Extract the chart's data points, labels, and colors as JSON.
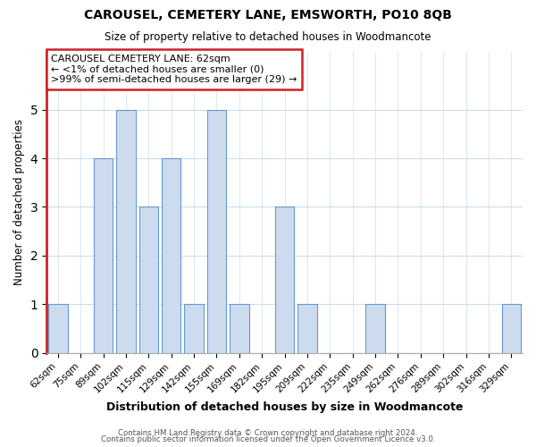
{
  "title": "CAROUSEL, CEMETERY LANE, EMSWORTH, PO10 8QB",
  "subtitle": "Size of property relative to detached houses in Woodmancote",
  "xlabel": "Distribution of detached houses by size in Woodmancote",
  "ylabel": "Number of detached properties",
  "categories": [
    "62sqm",
    "75sqm",
    "89sqm",
    "102sqm",
    "115sqm",
    "129sqm",
    "142sqm",
    "155sqm",
    "169sqm",
    "182sqm",
    "195sqm",
    "209sqm",
    "222sqm",
    "235sqm",
    "249sqm",
    "262sqm",
    "276sqm",
    "289sqm",
    "302sqm",
    "316sqm",
    "329sqm"
  ],
  "values": [
    1,
    0,
    4,
    5,
    3,
    4,
    1,
    5,
    1,
    0,
    3,
    1,
    0,
    0,
    1,
    0,
    0,
    0,
    0,
    0,
    1
  ],
  "bar_color": "#ccdcee",
  "bar_edge_color": "#6699cc",
  "highlight_color": "#cc2222",
  "ylim": [
    0,
    6.2
  ],
  "yticks": [
    0,
    1,
    2,
    3,
    4,
    5
  ],
  "annotation_title": "CAROUSEL CEMETERY LANE: 62sqm",
  "annotation_line1": "← <1% of detached houses are smaller (0)",
  "annotation_line2": ">99% of semi-detached houses are larger (29) →",
  "footer1": "Contains HM Land Registry data © Crown copyright and database right 2024.",
  "footer2": "Contains public sector information licensed under the Open Government Licence v3.0.",
  "background_color": "#ffffff",
  "plot_bg_color": "#ffffff",
  "grid_color": "#ccddee"
}
